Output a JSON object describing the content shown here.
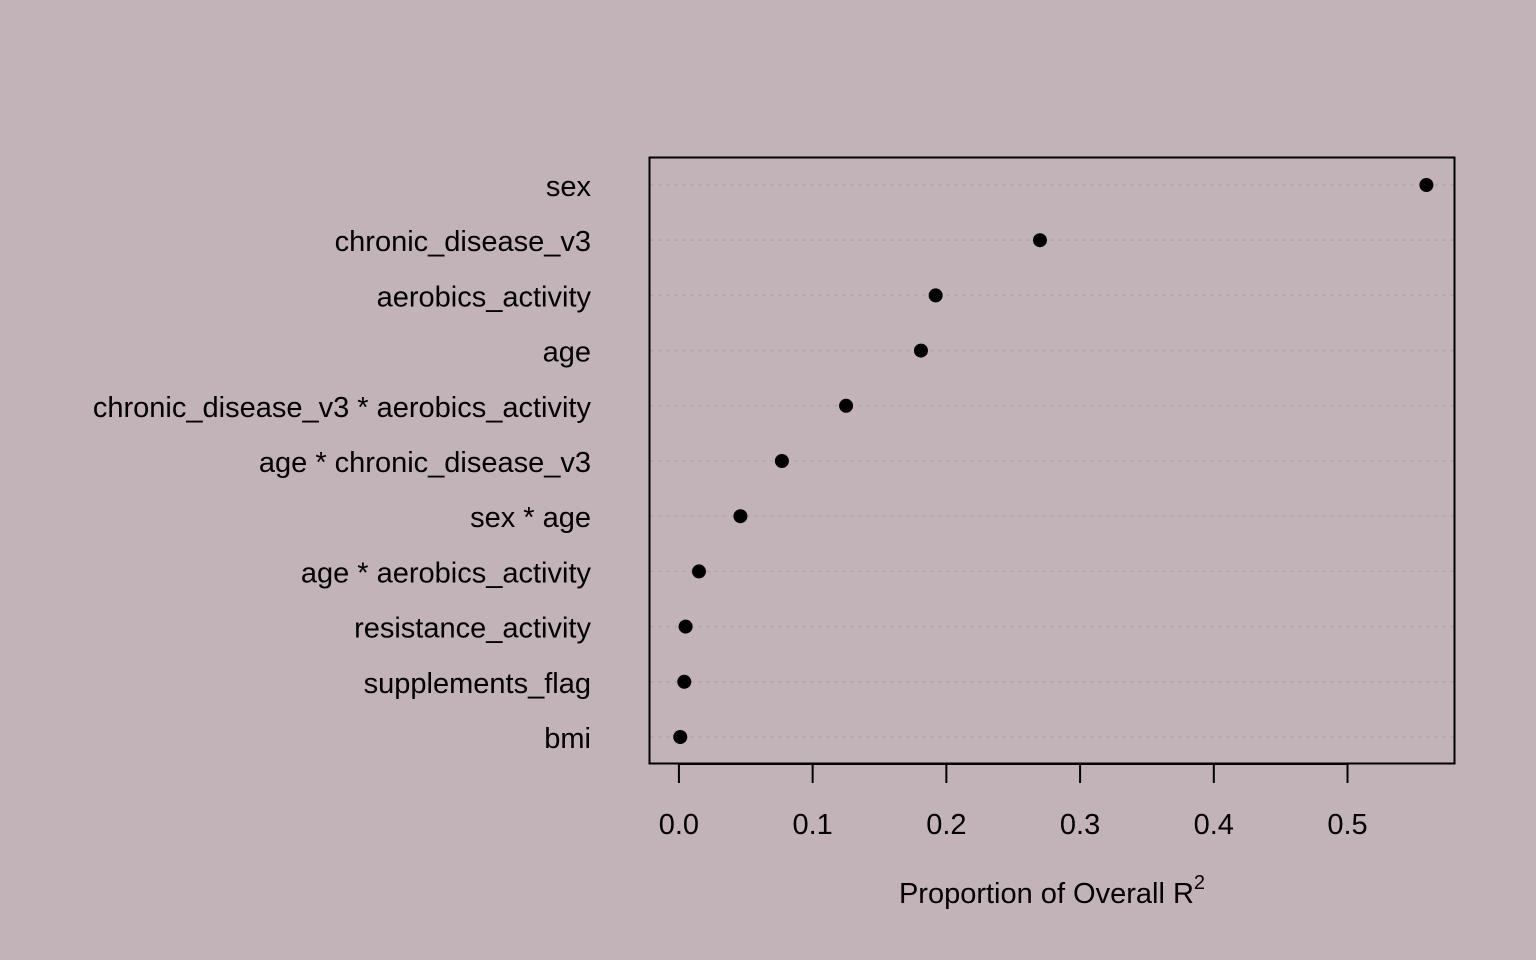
{
  "chart_data": {
    "type": "scatter",
    "categories": [
      "sex",
      "chronic_disease_v3",
      "aerobics_activity",
      "age",
      "chronic_disease_v3 * aerobics_activity",
      "age * chronic_disease_v3",
      "sex * age",
      "age * aerobics_activity",
      "resistance_activity",
      "supplements_flag",
      "bmi"
    ],
    "values": [
      0.559,
      0.27,
      0.192,
      0.181,
      0.125,
      0.077,
      0.046,
      0.015,
      0.005,
      0.004,
      0.001
    ],
    "xlabel": "Proportion of Overall R",
    "xlabel_superscript": "2",
    "xticks": [
      "0.0",
      "0.1",
      "0.2",
      "0.3",
      "0.4",
      "0.5"
    ],
    "xlim": [
      -0.022,
      0.58
    ],
    "grid": "horizontal dotted",
    "colors": {
      "background": "#c1b3b8",
      "point": "#000000",
      "grid": "#b1a5aa"
    }
  }
}
